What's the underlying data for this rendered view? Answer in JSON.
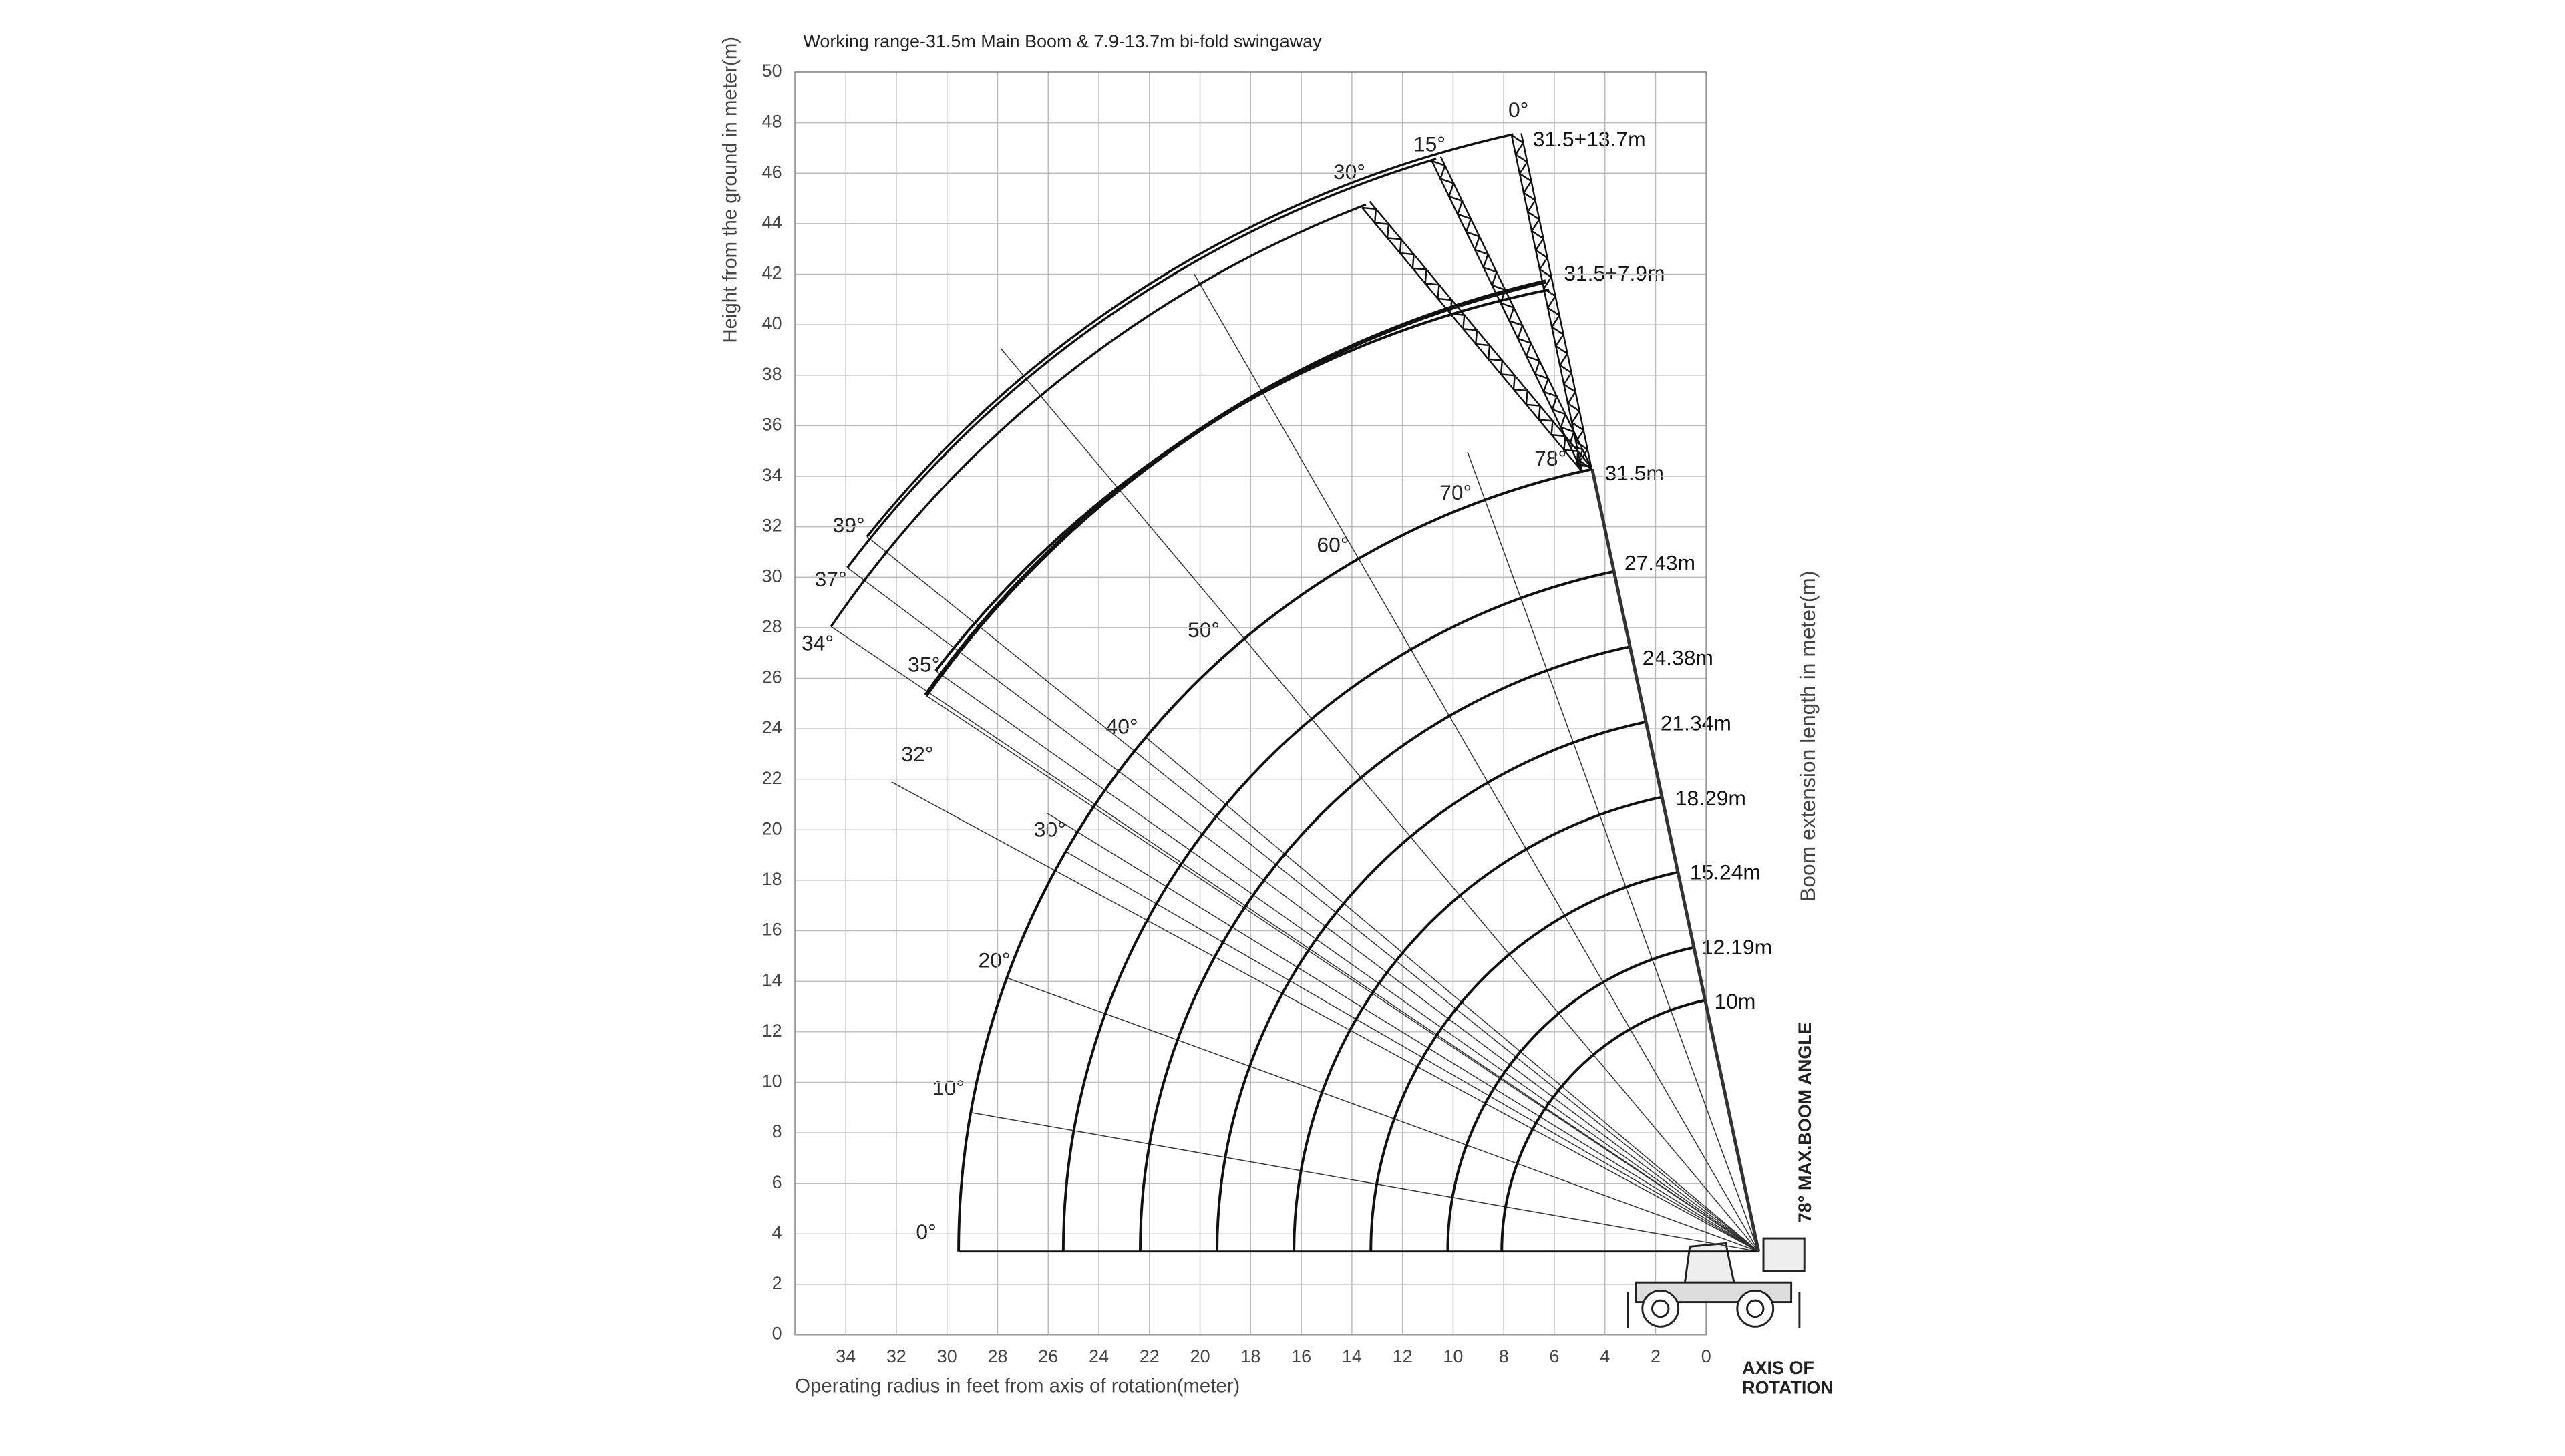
{
  "title": "Working range-31.5m Main Boom & 7.9-13.7m bi-fold swingaway",
  "y_axis": {
    "label": "Height from the ground in meter(m)",
    "ticks": [
      0,
      2,
      4,
      6,
      8,
      10,
      12,
      14,
      16,
      18,
      20,
      22,
      24,
      26,
      28,
      30,
      32,
      34,
      36,
      38,
      40,
      42,
      44,
      46,
      48,
      50
    ]
  },
  "x_axis": {
    "label": "Operating radius in feet from axis of rotation(meter)",
    "ticks": [
      34,
      32,
      30,
      28,
      26,
      24,
      22,
      20,
      18,
      16,
      14,
      12,
      10,
      8,
      6,
      4,
      2,
      0
    ]
  },
  "boom_lengths": [
    "31.5m",
    "27.43m",
    "24.38m",
    "21.34m",
    "18.29m",
    "15.24m",
    "12.19m",
    "10m"
  ],
  "boom_angles": [
    "0°",
    "10°",
    "20°",
    "30°",
    "40°",
    "50°",
    "60°",
    "70°",
    "78°"
  ],
  "jib_lengths": [
    "31.5+13.7m",
    "31.5+7.9m"
  ],
  "jib_offsets": [
    "0°",
    "15°",
    "30°"
  ],
  "jib_end_angles": [
    "39°",
    "37°",
    "34°",
    "35°",
    "32°"
  ],
  "side_label": "Boom extension length in meter(m)",
  "max_angle_label": "78° MAX.BOOM ANGLE",
  "axis_label": [
    "AXIS OF",
    "ROTATION"
  ]
}
